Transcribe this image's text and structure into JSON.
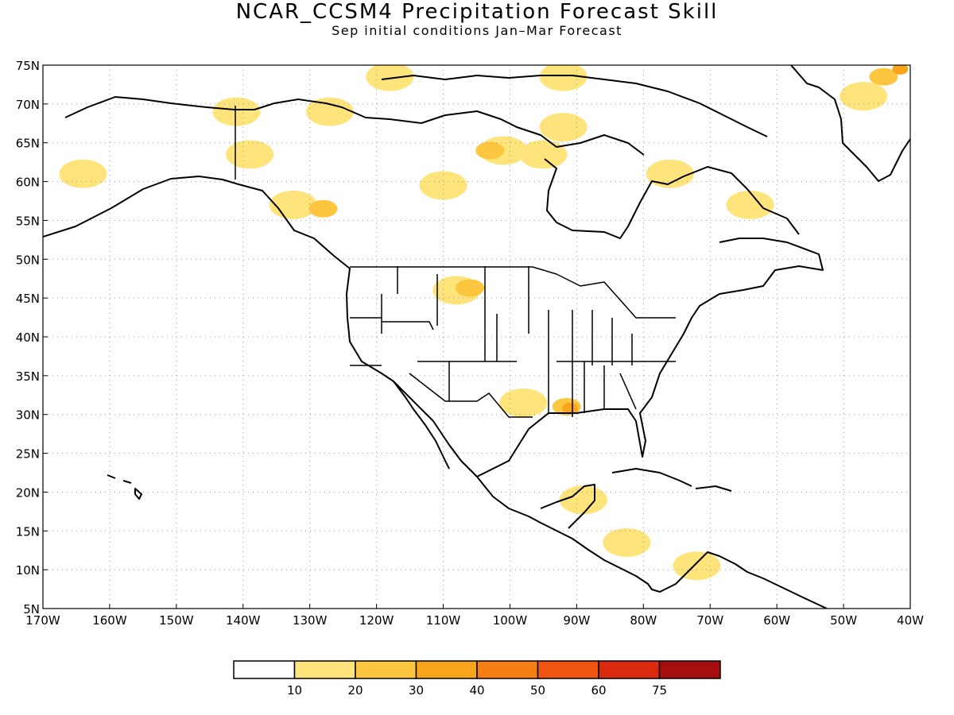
{
  "title": "NCAR_CCSM4 Precipitation Forecast Skill",
  "subtitle": "Sep initial conditions  Jan–Mar Forecast",
  "map": {
    "lon_range": [
      -170,
      -40
    ],
    "lat_range": [
      5,
      75
    ],
    "lon_ticks": [
      "170W",
      "160W",
      "150W",
      "140W",
      "130W",
      "120W",
      "110W",
      "100W",
      "90W",
      "80W",
      "70W",
      "60W",
      "50W",
      "40W"
    ],
    "lat_ticks": [
      "5N",
      "10N",
      "15N",
      "20N",
      "25N",
      "30N",
      "35N",
      "40N",
      "45N",
      "50N",
      "55N",
      "60N",
      "65N",
      "70N",
      "75N"
    ],
    "grid": "dotted"
  },
  "colorbar": {
    "colors": [
      "#ffffff",
      "#fee47a",
      "#fcc63f",
      "#f9a51a",
      "#f57f12",
      "#ef5411",
      "#d92a10",
      "#a50e0e"
    ],
    "labels": [
      "10",
      "20",
      "30",
      "40",
      "50",
      "60",
      "75"
    ]
  },
  "skill_regions": [
    {
      "lon": -132.5,
      "lat": 57.0,
      "level": 1
    },
    {
      "lon": -128.0,
      "lat": 56.5,
      "level": 2
    },
    {
      "lon": -108.0,
      "lat": 46.0,
      "level": 1
    },
    {
      "lon": -106.0,
      "lat": 46.3,
      "level": 2
    },
    {
      "lon": -98.0,
      "lat": 31.5,
      "level": 1
    },
    {
      "lon": -91.5,
      "lat": 31.0,
      "level": 2
    },
    {
      "lon": -91.0,
      "lat": 30.8,
      "level": 3
    },
    {
      "lon": -89.0,
      "lat": 19.0,
      "level": 1
    },
    {
      "lon": -82.5,
      "lat": 13.5,
      "level": 1
    },
    {
      "lon": -72.0,
      "lat": 10.5,
      "level": 1
    },
    {
      "lon": -101.0,
      "lat": 64.0,
      "level": 1
    },
    {
      "lon": -103.0,
      "lat": 64.0,
      "level": 2
    },
    {
      "lon": -95.0,
      "lat": 63.5,
      "level": 1
    },
    {
      "lon": -76.0,
      "lat": 61.0,
      "level": 1
    },
    {
      "lon": -64.0,
      "lat": 57.0,
      "level": 1
    },
    {
      "lon": -47.0,
      "lat": 71.0,
      "level": 1
    },
    {
      "lon": -44.0,
      "lat": 73.5,
      "level": 2
    },
    {
      "lon": -41.5,
      "lat": 74.5,
      "level": 3
    },
    {
      "lon": -127.0,
      "lat": 69.0,
      "level": 1
    },
    {
      "lon": -139.0,
      "lat": 63.5,
      "level": 1
    },
    {
      "lon": -141.0,
      "lat": 69.0,
      "level": 1
    },
    {
      "lon": -164.0,
      "lat": 61.0,
      "level": 1
    },
    {
      "lon": -110.0,
      "lat": 59.5,
      "level": 1
    },
    {
      "lon": -92.0,
      "lat": 67.0,
      "level": 1
    },
    {
      "lon": -118.0,
      "lat": 73.5,
      "level": 1
    },
    {
      "lon": -92.0,
      "lat": 73.5,
      "level": 1
    }
  ]
}
